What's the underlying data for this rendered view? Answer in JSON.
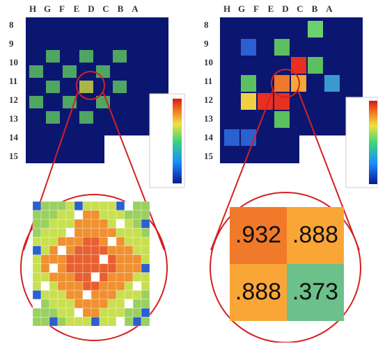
{
  "left_panel": {
    "column_labels": [
      "H",
      "G",
      "F",
      "E",
      "D",
      "C",
      "B",
      "A"
    ],
    "row_labels": [
      "8",
      "9",
      "10",
      "11",
      "12",
      "13",
      "14",
      "15"
    ]
  },
  "right_panel": {
    "column_labels": [
      "H",
      "G",
      "F",
      "E",
      "D",
      "C",
      "B",
      "A"
    ],
    "row_labels": [
      "8",
      "9",
      "10",
      "11",
      "12",
      "13",
      "14",
      "15"
    ],
    "zoom_values": [
      ".932",
      ".888",
      ".888",
      ".373"
    ]
  }
}
